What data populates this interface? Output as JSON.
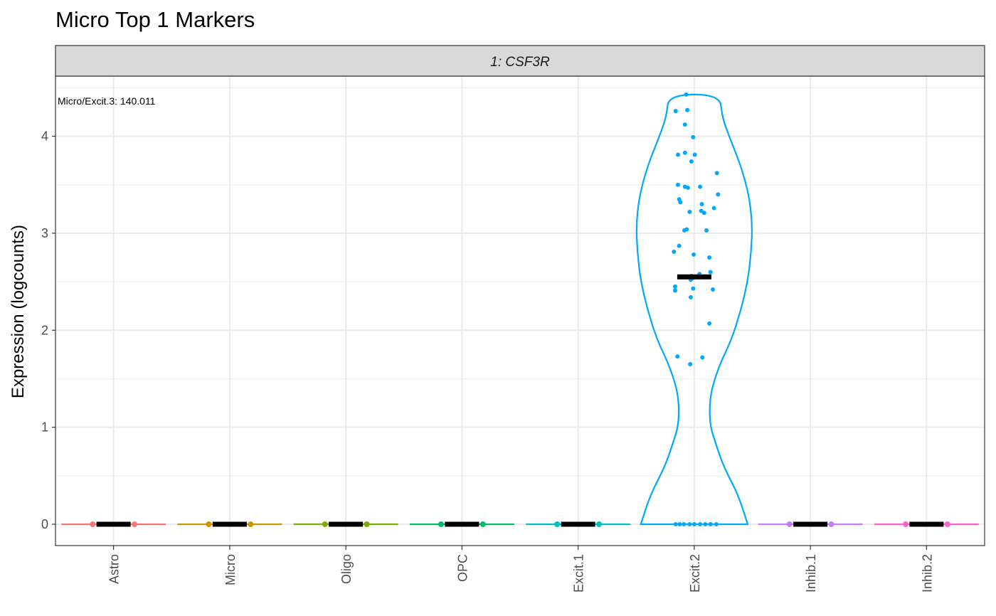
{
  "title": "Micro Top 1 Markers",
  "chart_data": {
    "type": "violin",
    "title": "Micro Top 1 Markers",
    "facet": "1: CSF3R",
    "annotation": "Micro/Excit.3: 140.011",
    "xlabel": "",
    "ylabel": "Expression (logcounts)",
    "ylim": [
      -0.22,
      4.62
    ],
    "y_ticks": [
      0,
      1,
      2,
      3,
      4
    ],
    "grid": true,
    "categories": [
      "Astro",
      "Micro",
      "Oligo",
      "OPC",
      "Excit.1",
      "Excit.2",
      "Inhib.1",
      "Inhib.2"
    ],
    "colors": [
      "#F8766D",
      "#CD9600",
      "#7CAE00",
      "#00BE67",
      "#00BFC4",
      "#00A9FF",
      "#C77CFF",
      "#FF61CC"
    ],
    "medians": [
      0,
      0,
      0,
      0,
      0,
      2.55,
      0,
      0
    ],
    "violin_max": [
      0,
      0,
      0,
      0,
      0,
      4.43,
      0,
      0
    ],
    "excit2_density_profile": [
      [
        0.0,
        0.46
      ],
      [
        0.3,
        0.38
      ],
      [
        0.6,
        0.25
      ],
      [
        0.85,
        0.18
      ],
      [
        1.0,
        0.14
      ],
      [
        1.2,
        0.13
      ],
      [
        1.4,
        0.15
      ],
      [
        1.65,
        0.22
      ],
      [
        1.9,
        0.32
      ],
      [
        2.2,
        0.4
      ],
      [
        2.5,
        0.46
      ],
      [
        2.8,
        0.49
      ],
      [
        3.1,
        0.5
      ],
      [
        3.4,
        0.47
      ],
      [
        3.7,
        0.4
      ],
      [
        4.0,
        0.3
      ],
      [
        4.2,
        0.24
      ],
      [
        4.43,
        0.22
      ]
    ],
    "points": {
      "Excit.2": [
        [
          -0.14,
          4.43
        ],
        [
          -0.32,
          4.26
        ],
        [
          -0.12,
          4.27
        ],
        [
          -0.16,
          4.12
        ],
        [
          -0.02,
          3.99
        ],
        [
          -0.28,
          3.81
        ],
        [
          -0.16,
          3.83
        ],
        [
          0.01,
          3.81
        ],
        [
          -0.05,
          3.74
        ],
        [
          0.39,
          3.62
        ],
        [
          -0.28,
          3.5
        ],
        [
          -0.16,
          3.48
        ],
        [
          -0.11,
          3.47
        ],
        [
          0.1,
          3.48
        ],
        [
          0.41,
          3.4
        ],
        [
          -0.26,
          3.35
        ],
        [
          -0.24,
          3.32
        ],
        [
          0.13,
          3.3
        ],
        [
          0.34,
          3.26
        ],
        [
          -0.08,
          3.22
        ],
        [
          0.12,
          3.23
        ],
        [
          0.17,
          3.21
        ],
        [
          -0.17,
          3.03
        ],
        [
          -0.13,
          3.04
        ],
        [
          0.21,
          3.03
        ],
        [
          -0.26,
          2.87
        ],
        [
          -0.35,
          2.81
        ],
        [
          -0.01,
          2.78
        ],
        [
          0.26,
          2.75
        ],
        [
          0.09,
          2.58
        ],
        [
          0.28,
          2.6
        ],
        [
          -0.05,
          2.56
        ],
        [
          -0.02,
          2.54
        ],
        [
          -0.06,
          2.52
        ],
        [
          -0.33,
          2.45
        ],
        [
          -0.33,
          2.41
        ],
        [
          -0.02,
          2.43
        ],
        [
          0.32,
          2.42
        ],
        [
          -0.06,
          2.34
        ],
        [
          0.26,
          2.07
        ],
        [
          -0.29,
          1.73
        ],
        [
          0.14,
          1.72
        ],
        [
          -0.07,
          1.65
        ],
        [
          -0.32,
          0
        ],
        [
          -0.25,
          0
        ],
        [
          -0.18,
          0
        ],
        [
          -0.08,
          0
        ],
        [
          0.0,
          0
        ],
        [
          0.1,
          0
        ],
        [
          0.19,
          0
        ],
        [
          0.28,
          0
        ],
        [
          0.38,
          0
        ]
      ]
    }
  }
}
